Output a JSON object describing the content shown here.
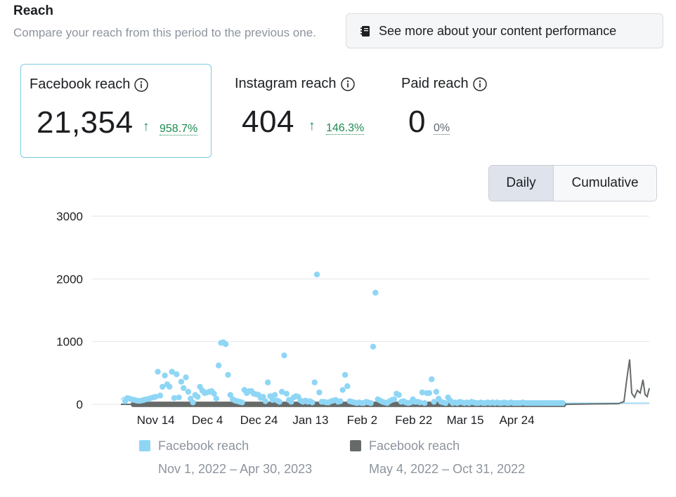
{
  "header": {
    "title": "Reach",
    "subtitle": "Compare your reach from this period to the previous one.",
    "more_button_label": "See more about your content performance"
  },
  "metrics": [
    {
      "title": "Facebook reach",
      "value": "21,354",
      "change": "958.7%",
      "trend": "up"
    },
    {
      "title": "Instagram reach",
      "value": "404",
      "change": "146.3%",
      "trend": "up"
    },
    {
      "title": "Paid reach",
      "value": "0",
      "change": "0%",
      "trend": "none"
    }
  ],
  "toggle": {
    "options": [
      "Daily",
      "Cumulative"
    ],
    "selected": "Daily"
  },
  "colors": {
    "current": "#8fd6f5",
    "previous": "#666b69",
    "grid": "#e4e6eb",
    "positive": "#1d8a4f"
  },
  "chart_data": {
    "type": "scatter",
    "ylim": [
      0,
      3000
    ],
    "yticks": [
      "0",
      "1000",
      "2000",
      "3000"
    ],
    "xticks": [
      "Nov 14",
      "Dec 4",
      "Dec 24",
      "Jan 13",
      "Feb 2",
      "Feb 22",
      "Mar 15",
      "Apr 24"
    ],
    "x_start": "2022-11-01",
    "grid": true,
    "legend_position": "bottom",
    "series": [
      {
        "name": "Facebook reach",
        "period": "Nov 1, 2022 – Apr 30, 2023",
        "style": "points",
        "values": [
          50,
          100,
          90,
          75,
          70,
          60,
          55,
          60,
          70,
          80,
          85,
          100,
          110,
          120,
          520,
          140,
          280,
          460,
          320,
          280,
          520,
          100,
          480,
          110,
          360,
          260,
          430,
          200,
          90,
          30,
          150,
          120,
          280,
          220,
          180,
          190,
          200,
          210,
          170,
          90,
          620,
          980,
          990,
          960,
          470,
          150,
          80,
          60,
          50,
          40,
          30,
          230,
          180,
          210,
          210,
          170,
          160,
          150,
          100,
          120,
          50,
          350,
          130,
          70,
          150,
          60,
          40,
          200,
          780,
          170,
          70,
          40,
          110,
          130,
          120,
          60,
          40,
          60,
          40,
          50,
          30,
          350,
          2070,
          190,
          40,
          40,
          30,
          30,
          50,
          60,
          70,
          40,
          50,
          230,
          470,
          290,
          50,
          40,
          30,
          20,
          30,
          20,
          20,
          40,
          30,
          20,
          920,
          1780,
          80,
          60,
          40,
          30,
          20,
          50,
          70,
          80,
          170,
          150,
          40,
          50,
          30,
          20,
          30,
          80,
          40,
          40,
          30,
          190,
          20,
          180,
          180,
          400,
          40,
          200,
          90,
          40,
          30,
          20,
          110,
          60,
          20,
          30,
          20,
          40,
          30,
          20,
          30,
          20,
          40,
          30,
          20,
          20,
          30,
          20,
          20,
          30,
          20,
          30,
          20,
          30,
          20,
          20,
          30,
          20,
          20,
          30,
          20,
          20,
          20,
          20,
          30,
          20,
          20,
          20,
          20,
          20,
          20,
          20,
          20,
          20,
          20,
          20,
          20,
          20,
          20,
          20,
          20,
          20,
          20,
          20,
          20,
          20,
          20,
          20
        ]
      },
      {
        "name": "Facebook reach",
        "period": "May 4, 2022 – Oct 31, 2022",
        "style": "points",
        "values": [
          0,
          0,
          0,
          0,
          0,
          0,
          0,
          0,
          0,
          0,
          0,
          0,
          0,
          0,
          0,
          0,
          0,
          0,
          0,
          0,
          0,
          0,
          0,
          0,
          0,
          0,
          0,
          0,
          0,
          0,
          0,
          0,
          0,
          0,
          0,
          0,
          0,
          0,
          0,
          0,
          0,
          0,
          0,
          0,
          0,
          0,
          0,
          0,
          0,
          0,
          0,
          0,
          0,
          0,
          0,
          0,
          0,
          0,
          0,
          0,
          0,
          0,
          0,
          0,
          0,
          0,
          0,
          0,
          0,
          0,
          0,
          0,
          0,
          0,
          0,
          0,
          0,
          0,
          0,
          0,
          0,
          0,
          0,
          0,
          0,
          0,
          0,
          0,
          0,
          0,
          0,
          0,
          0,
          0,
          0,
          0,
          0,
          0,
          0,
          0,
          0,
          0,
          0,
          0,
          0,
          0,
          0,
          0,
          0,
          0,
          0,
          0,
          0,
          0,
          0,
          0,
          0,
          0,
          0,
          0,
          0,
          0,
          0,
          0,
          0,
          0,
          0,
          0,
          0,
          0,
          0,
          0,
          0,
          0,
          0,
          0,
          0,
          0,
          0,
          0,
          0,
          0,
          0,
          0,
          0,
          0,
          0,
          0,
          0,
          0,
          0,
          0,
          0,
          0,
          0,
          0,
          0,
          0,
          0,
          0,
          0,
          0,
          0,
          0,
          0,
          0,
          0,
          0,
          0,
          0,
          0,
          0,
          0,
          0,
          0,
          0,
          0,
          0,
          0,
          0,
          0,
          0,
          0,
          0,
          0,
          0,
          0,
          0,
          0
        ]
      }
    ]
  }
}
